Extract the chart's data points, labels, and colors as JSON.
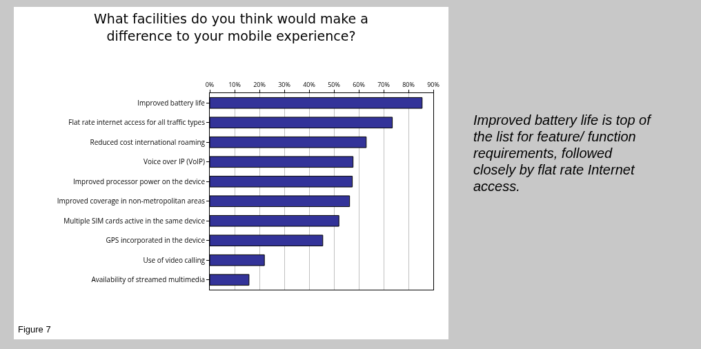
{
  "chart_data": {
    "type": "bar",
    "orientation": "horizontal",
    "title": "What facilities do you think would make a difference to your mobile experience?",
    "categories": [
      "Improved battery life",
      "Flat rate internet access for all traffic types",
      "Reduced cost international roaming",
      "Voice over IP (VoIP)",
      "Improved processor power on the device",
      "Improved coverage in non-metropolitan areas",
      "Multiple SIM cards active in the same device",
      "GPS incorporated in the device",
      "Use of video calling",
      "Availability of streamed multimedia"
    ],
    "values": [
      85.5,
      73.5,
      63,
      57.7,
      57.4,
      56.3,
      52,
      45.5,
      22,
      15.8
    ],
    "color": "#333399",
    "xlim": [
      0,
      90
    ],
    "xticks": [
      {
        "value": 0,
        "label": "0%"
      },
      {
        "value": 10,
        "label": "10%"
      },
      {
        "value": 20,
        "label": "20%"
      },
      {
        "value": 30,
        "label": "30%"
      },
      {
        "value": 40,
        "label": "40%"
      },
      {
        "value": 50,
        "label": "50%"
      },
      {
        "value": 60,
        "label": "60%"
      },
      {
        "value": 70,
        "label": "70%"
      },
      {
        "value": 80,
        "label": "80%"
      },
      {
        "value": 90,
        "label": "90%"
      }
    ],
    "grid": "x",
    "legend": false,
    "annotations": [
      "Improved battery life is top of the list for feature/ function requirements, followed closely by flat rate Internet access.",
      "Figure 7"
    ]
  }
}
